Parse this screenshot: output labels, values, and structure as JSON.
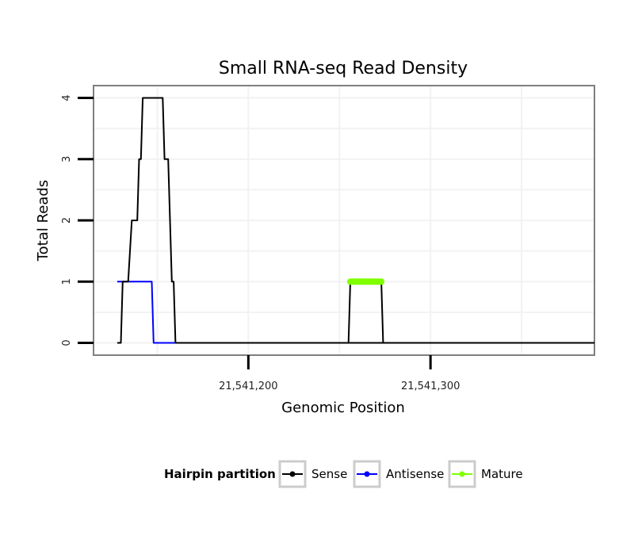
{
  "chart_data": {
    "type": "line",
    "title": "Small RNA-seq Read Density",
    "xlabel": "Genomic Position",
    "ylabel": "Total Reads",
    "xlim": [
      21541115,
      21541390
    ],
    "ylim": [
      -0.2,
      4.2
    ],
    "x_ticks": [
      {
        "value": 21541200,
        "label": "21,541,200"
      },
      {
        "value": 21541300,
        "label": "21,541,300"
      }
    ],
    "x_minor_grid": [
      21541150,
      21541250,
      21541350
    ],
    "y_ticks": [
      {
        "value": 0,
        "label": "0"
      },
      {
        "value": 1,
        "label": "1"
      },
      {
        "value": 2,
        "label": "2"
      },
      {
        "value": 3,
        "label": "3"
      },
      {
        "value": 4,
        "label": "4"
      }
    ],
    "grid": true,
    "legend": {
      "title": "Hairpin partition",
      "position": "bottom",
      "entries": [
        {
          "name": "Sense",
          "color": "#000000"
        },
        {
          "name": "Antisense",
          "color": "#0000ff"
        },
        {
          "name": "Mature",
          "color": "#7fff00"
        }
      ]
    },
    "series": [
      {
        "name": "Sense",
        "color": "#000000",
        "width": 2,
        "points": [
          [
            21541128,
            0
          ],
          [
            21541130,
            0
          ],
          [
            21541131,
            1
          ],
          [
            21541133,
            1
          ],
          [
            21541134,
            1
          ],
          [
            21541136,
            2
          ],
          [
            21541139,
            2
          ],
          [
            21541140,
            3
          ],
          [
            21541141,
            3
          ],
          [
            21541142,
            4
          ],
          [
            21541153,
            4
          ],
          [
            21541154,
            3
          ],
          [
            21541156,
            3
          ],
          [
            21541157,
            2
          ],
          [
            21541158,
            1
          ],
          [
            21541159,
            1
          ],
          [
            21541160,
            0
          ],
          [
            21541390,
            0
          ],
          [
            21541255,
            0
          ],
          [
            21541256,
            1
          ],
          [
            21541273,
            1
          ],
          [
            21541274,
            0
          ]
        ]
      },
      {
        "name": "Antisense",
        "color": "#0000ff",
        "width": 2,
        "points": [
          [
            21541128,
            1
          ],
          [
            21541147,
            1
          ],
          [
            21541148,
            0
          ],
          [
            21541390,
            0
          ]
        ]
      },
      {
        "name": "Mature",
        "color": "#7fff00",
        "width": 8,
        "points": [
          [
            21541256,
            1
          ],
          [
            21541273,
            1
          ]
        ]
      }
    ]
  }
}
